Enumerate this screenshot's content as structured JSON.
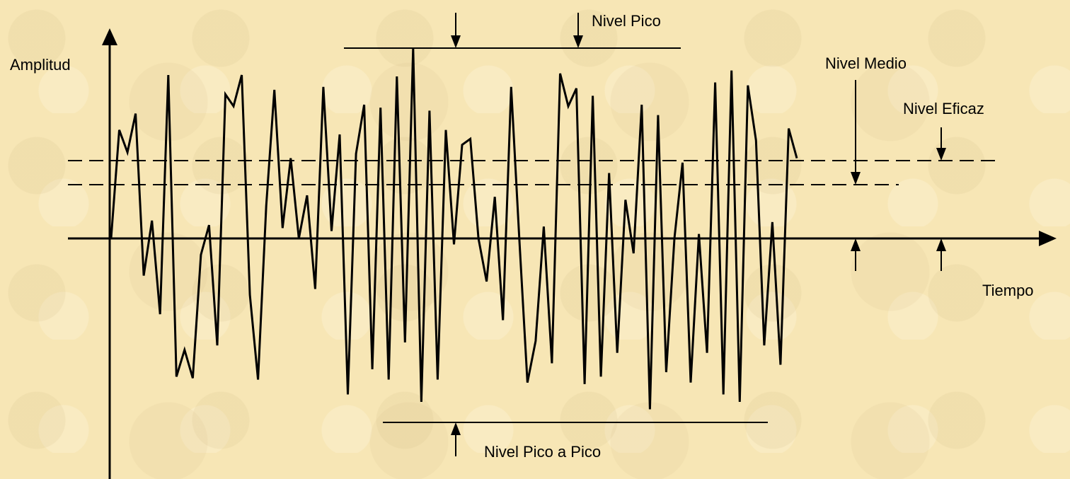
{
  "labels": {
    "y_axis": "Amplitud",
    "x_axis": "Tiempo",
    "peak": "Nivel Pico",
    "mean": "Nivel Medio",
    "rms": "Nivel Eficaz",
    "peak_to_peak": "Nivel Pico a Pico"
  },
  "colors": {
    "background": "#f7e6b5",
    "ink": "#000000"
  },
  "signal": {
    "description_free": true,
    "samples": [
      0,
      0.73,
      0.58,
      0.84,
      -0.25,
      0.12,
      -0.51,
      1.1,
      -0.93,
      -0.75,
      -0.94,
      -0.11,
      0.09,
      -0.72,
      0.97,
      0.89,
      1.1,
      -0.38,
      -0.95,
      0.22,
      1.0,
      0.07,
      0.54,
      0.0,
      0.29,
      -0.34,
      1.02,
      0.05,
      0.7,
      -1.05,
      0.57,
      0.9,
      -0.88,
      0.88,
      -0.95,
      1.09,
      -0.7,
      1.28,
      -1.1,
      0.86,
      -0.95,
      0.73,
      -0.04,
      0.63,
      0.67,
      0.0,
      -0.29,
      0.28,
      -0.55,
      1.02,
      0.0,
      -0.97,
      -0.69,
      0.08,
      -0.84,
      1.11,
      0.89,
      1.01,
      -0.98,
      0.96,
      -0.93,
      0.44,
      -0.77,
      0.26,
      -0.1,
      0.9,
      -1.15,
      0.83,
      -0.9,
      0.0,
      0.51,
      -0.97,
      0.03,
      -0.77,
      1.05,
      -1.05,
      1.13,
      -1.1,
      1.03,
      0.66,
      -0.72,
      0.11,
      -0.85,
      0.74,
      0.54
    ]
  },
  "levels": {
    "peak": 1.28,
    "rms": 0.49,
    "mean": 0.34,
    "trough": -1.18
  }
}
